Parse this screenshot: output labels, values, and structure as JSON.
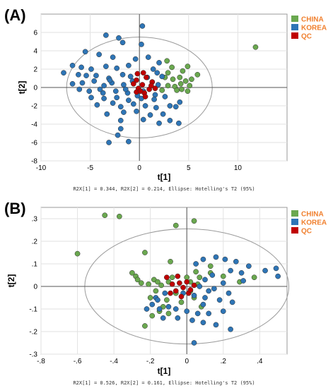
{
  "chart_data": [
    {
      "type": "scatter",
      "panel": "(A)",
      "xlabel": "t[1]",
      "ylabel": "t[2]",
      "xlim": [
        -10,
        15
      ],
      "ylim": [
        -8,
        8
      ],
      "xticks": [
        -10,
        -5,
        0,
        5,
        10
      ],
      "yticks": [
        -8,
        -6,
        -4,
        -2,
        0,
        2,
        4,
        6
      ],
      "grid": true,
      "legend_position": "top-right",
      "footnote": "R2X[1] = 0.344, R2X[2] = 0.214, Ellipse: Hotelling's T2 (95%)",
      "ellipse": {
        "cx": 0,
        "cy": 0,
        "rx": 7.4,
        "ry": 5.5
      },
      "series": [
        {
          "name": "CHINA",
          "color": "#6aa84f",
          "points": [
            [
              11.8,
              4.4
            ],
            [
              2.8,
              2.9
            ],
            [
              3.3,
              2.2
            ],
            [
              4.4,
              1.8
            ],
            [
              4.9,
              2.3
            ],
            [
              5.9,
              1.4
            ],
            [
              2.6,
              1.1
            ],
            [
              3.4,
              0.9
            ],
            [
              4.1,
              1.1
            ],
            [
              4.7,
              0.7
            ],
            [
              2.9,
              0.2
            ],
            [
              3.6,
              0.1
            ],
            [
              4.3,
              -0.2
            ],
            [
              5.1,
              0.2
            ],
            [
              2.3,
              -0.3
            ],
            [
              4.9,
              -0.4
            ],
            [
              3.8,
              -0.3
            ],
            [
              2.9,
              1.6
            ],
            [
              4.2,
              0.4
            ],
            [
              5.3,
              0.9
            ]
          ]
        },
        {
          "name": "KOREA",
          "color": "#2e75b6",
          "points": [
            [
              0.3,
              6.7
            ],
            [
              -3.4,
              5.7
            ],
            [
              -2.1,
              5.4
            ],
            [
              -1.7,
              4.9
            ],
            [
              0.2,
              4.7
            ],
            [
              -5.5,
              3.9
            ],
            [
              -4.1,
              3.6
            ],
            [
              -2.7,
              3.3
            ],
            [
              -0.4,
              3.1
            ],
            [
              0.9,
              3.3
            ],
            [
              -6.8,
              2.4
            ],
            [
              -5.9,
              2.2
            ],
            [
              -4.9,
              2.0
            ],
            [
              -3.4,
              2.3
            ],
            [
              -2.3,
              2.1
            ],
            [
              -1.1,
              2.4
            ],
            [
              1.4,
              2.0
            ],
            [
              2.0,
              2.7
            ],
            [
              -7.7,
              1.6
            ],
            [
              -6.2,
              1.4
            ],
            [
              -5.4,
              1.3
            ],
            [
              -4.4,
              1.3
            ],
            [
              -3.1,
              1.0
            ],
            [
              -1.7,
              1.4
            ],
            [
              -0.9,
              1.2
            ],
            [
              1.8,
              1.6
            ],
            [
              2.3,
              1.2
            ],
            [
              -6.8,
              0.4
            ],
            [
              -5.8,
              0.5
            ],
            [
              -4.6,
              0.7
            ],
            [
              -3.6,
              0.2
            ],
            [
              -2.8,
              0.5
            ],
            [
              -1.6,
              0.3
            ],
            [
              -0.7,
              0.7
            ],
            [
              1.3,
              0.6
            ],
            [
              1.9,
              0.3
            ],
            [
              -6.1,
              -0.2
            ],
            [
              -5.1,
              -0.4
            ],
            [
              -3.7,
              -0.6
            ],
            [
              -2.4,
              -0.4
            ],
            [
              -1.2,
              -0.6
            ],
            [
              0.4,
              -0.4
            ],
            [
              1.6,
              -0.8
            ],
            [
              -4.9,
              -1.1
            ],
            [
              -3.6,
              -1.2
            ],
            [
              -2.3,
              -1.1
            ],
            [
              -1.1,
              -1.4
            ],
            [
              0.2,
              -1.2
            ],
            [
              1.5,
              -1.3
            ],
            [
              2.6,
              -1.0
            ],
            [
              -4.3,
              -1.9
            ],
            [
              -2.7,
              -1.7
            ],
            [
              -1.9,
              -2.1
            ],
            [
              -0.6,
              -1.8
            ],
            [
              0.6,
              -2.0
            ],
            [
              1.7,
              -2.2
            ],
            [
              3.1,
              -2.0
            ],
            [
              4.1,
              -1.6
            ],
            [
              -3.3,
              -2.9
            ],
            [
              -1.6,
              -2.7
            ],
            [
              -0.3,
              -2.6
            ],
            [
              1.1,
              -3.0
            ],
            [
              2.4,
              -2.9
            ],
            [
              3.7,
              -2.1
            ],
            [
              -1.9,
              -3.6
            ],
            [
              0.4,
              -3.5
            ],
            [
              3.1,
              -3.6
            ],
            [
              4.0,
              -3.9
            ],
            [
              -1.9,
              -4.5
            ],
            [
              -3.1,
              -6.0
            ],
            [
              -1.1,
              -5.9
            ],
            [
              -2.2,
              -5.2
            ],
            [
              2.0,
              -3.9
            ],
            [
              -0.2,
              -0.9
            ],
            [
              -3.0,
              0.8
            ],
            [
              -4.0,
              -0.2
            ],
            [
              0.8,
              1.1
            ],
            [
              -1.4,
              -0.2
            ]
          ]
        },
        {
          "name": "QC",
          "color": "#c00000",
          "points": [
            [
              -0.2,
              1.5
            ],
            [
              0.7,
              1.1
            ],
            [
              -0.3,
              0.8
            ],
            [
              1.3,
              0.6
            ],
            [
              0.3,
              0.3
            ],
            [
              -0.1,
              -0.1
            ],
            [
              1.0,
              -0.2
            ],
            [
              0.5,
              -0.6
            ],
            [
              -0.6,
              0.4
            ],
            [
              0.4,
              1.6
            ],
            [
              1.6,
              -0.1
            ],
            [
              -0.3,
              -0.5
            ],
            [
              0.6,
              -1.0
            ],
            [
              0.1,
              -0.4
            ],
            [
              1.2,
              0.2
            ]
          ]
        }
      ]
    },
    {
      "type": "scatter",
      "panel": "(B)",
      "xlabel": "t[1]",
      "ylabel": "t[2]",
      "xlim": [
        -0.8,
        0.55
      ],
      "ylim": [
        -0.3,
        0.35
      ],
      "xticks": [
        -0.8,
        -0.6,
        -0.4,
        -0.2,
        0,
        0.2,
        0.4
      ],
      "yticks": [
        -0.3,
        -0.2,
        -0.1,
        0,
        0.1,
        0.2,
        0.3
      ],
      "grid": true,
      "legend_position": "top-right",
      "footnote": "R2X[1] = 0.526, R2X[2] = 0.161, Ellipse: Hotelling's T2 (95%)",
      "ellipse": {
        "cx": 0,
        "cy": 0,
        "rx": 0.56,
        "ry": 0.255
      },
      "series": [
        {
          "name": "CHINA",
          "color": "#6aa84f",
          "points": [
            [
              -0.45,
              0.315
            ],
            [
              -0.37,
              0.31
            ],
            [
              -0.6,
              0.145
            ],
            [
              -0.06,
              0.27
            ],
            [
              0.04,
              0.29
            ],
            [
              -0.23,
              0.15
            ],
            [
              -0.09,
              0.11
            ],
            [
              -0.3,
              0.06
            ],
            [
              -0.28,
              0.045
            ],
            [
              -0.27,
              0.03
            ],
            [
              -0.25,
              0.015
            ],
            [
              -0.21,
              0.01
            ],
            [
              -0.18,
              0.03
            ],
            [
              -0.16,
              0.02
            ],
            [
              -0.14,
              0.005
            ],
            [
              -0.1,
              0.02
            ],
            [
              -0.08,
              0.04
            ],
            [
              0.0,
              0.04
            ],
            [
              0.05,
              0.065
            ],
            [
              0.07,
              0.04
            ],
            [
              -0.06,
              -0.03
            ],
            [
              0.04,
              -0.05
            ],
            [
              0.02,
              -0.02
            ],
            [
              -0.03,
              -0.07
            ],
            [
              0.08,
              -0.09
            ],
            [
              -0.11,
              -0.06
            ],
            [
              -0.13,
              -0.09
            ],
            [
              -0.15,
              -0.11
            ],
            [
              -0.19,
              -0.13
            ],
            [
              -0.23,
              -0.175
            ],
            [
              -0.1,
              -0.12
            ],
            [
              0.13,
              0.09
            ],
            [
              0.2,
              0.045
            ],
            [
              0.29,
              0.02
            ],
            [
              0.37,
              0.04
            ],
            [
              0.02,
              0.02
            ],
            [
              -0.17,
              -0.02
            ],
            [
              0.06,
              0.01
            ],
            [
              0.13,
              0.06
            ],
            [
              -0.2,
              -0.05
            ]
          ]
        },
        {
          "name": "KOREA",
          "color": "#2e75b6",
          "points": [
            [
              0.49,
              0.08
            ],
            [
              0.5,
              0.045
            ],
            [
              0.43,
              0.07
            ],
            [
              0.34,
              0.09
            ],
            [
              0.27,
              0.11
            ],
            [
              0.21,
              0.12
            ],
            [
              0.16,
              0.13
            ],
            [
              0.09,
              0.12
            ],
            [
              0.05,
              0.1
            ],
            [
              0.14,
              0.05
            ],
            [
              0.24,
              0.07
            ],
            [
              0.31,
              0.025
            ],
            [
              0.2,
              0.015
            ],
            [
              0.1,
              0.03
            ],
            [
              0.07,
              0.0
            ],
            [
              0.15,
              -0.01
            ],
            [
              0.23,
              -0.03
            ],
            [
              0.1,
              -0.05
            ],
            [
              0.18,
              -0.06
            ],
            [
              0.04,
              -0.04
            ],
            [
              -0.02,
              -0.03
            ],
            [
              -0.12,
              -0.03
            ],
            [
              -0.17,
              -0.05
            ],
            [
              -0.19,
              -0.08
            ],
            [
              -0.15,
              -0.1
            ],
            [
              -0.1,
              -0.09
            ],
            [
              -0.06,
              -0.1
            ],
            [
              0.0,
              -0.11
            ],
            [
              0.06,
              -0.12
            ],
            [
              0.12,
              -0.12
            ],
            [
              0.2,
              -0.11
            ],
            [
              -0.05,
              -0.14
            ],
            [
              0.03,
              -0.15
            ],
            [
              0.09,
              -0.16
            ],
            [
              0.16,
              -0.17
            ],
            [
              0.24,
              -0.19
            ],
            [
              0.04,
              -0.25
            ],
            [
              -0.13,
              -0.14
            ],
            [
              -0.16,
              -0.06
            ],
            [
              0.12,
              -0.02
            ],
            [
              0.3,
              0.06
            ],
            [
              0.25,
              -0.07
            ],
            [
              0.09,
              -0.08
            ],
            [
              -0.22,
              -0.1
            ]
          ]
        },
        {
          "name": "QC",
          "color": "#c00000",
          "points": [
            [
              -0.11,
              0.04
            ],
            [
              -0.08,
              0.01
            ],
            [
              -0.04,
              0.015
            ],
            [
              -0.02,
              -0.005
            ],
            [
              -0.06,
              -0.02
            ],
            [
              0.01,
              -0.03
            ],
            [
              -0.03,
              -0.045
            ],
            [
              0.0,
              0.02
            ],
            [
              -0.09,
              -0.03
            ],
            [
              0.04,
              0.005
            ],
            [
              -0.05,
              0.045
            ],
            [
              0.02,
              -0.015
            ]
          ]
        }
      ]
    }
  ]
}
